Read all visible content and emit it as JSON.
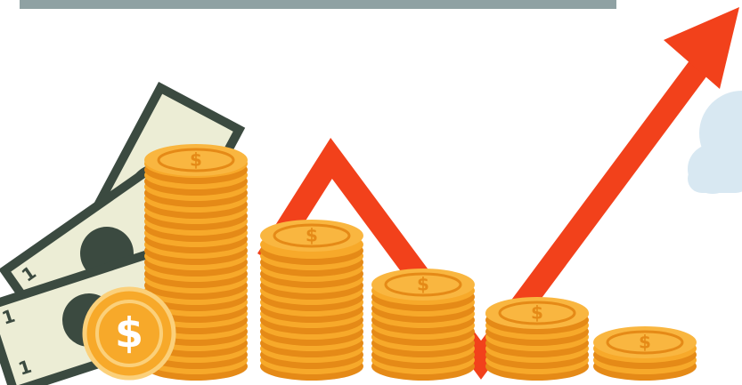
{
  "illustration": {
    "bill_numeral": "1",
    "coin_symbol": "$"
  }
}
